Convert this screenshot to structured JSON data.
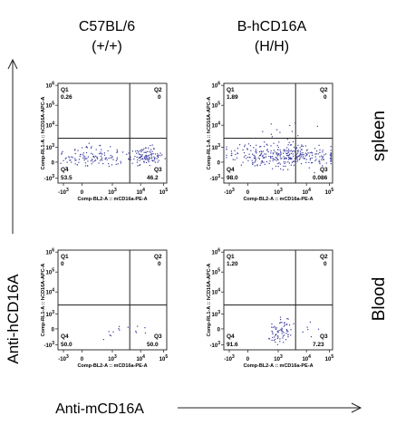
{
  "columns": [
    {
      "line1": "C57BL/6",
      "line2": "(+/+)"
    },
    {
      "line1": "B-hCD16A",
      "line2": "(H/H)"
    }
  ],
  "rows": [
    "spleen",
    "Blood"
  ],
  "axis_titles": {
    "y": "Anti-hCD16A",
    "x": "Anti-mCD16A"
  },
  "plot_labels": {
    "x": "Comp-BL2-A :: mCD16a-PE-A",
    "y": "Comp-RL1-A :: hCD16A-APC-A"
  },
  "colors": {
    "dots": "#3a3aa0",
    "text": "#111111"
  },
  "chart_data": [
    {
      "type": "scatter",
      "panel": "C57BL/6 (+/+) spleen",
      "xlabel": "Comp-BL2-A :: mCD16a-PE-A",
      "ylabel": "Comp-RL1-A :: hCD16A-APC-A",
      "quadrants": {
        "Q1": "0.26",
        "Q2": "0",
        "Q3": "46.2",
        "Q4": "53.5"
      }
    },
    {
      "type": "scatter",
      "panel": "B-hCD16A (H/H) spleen",
      "xlabel": "Comp-BL2-A :: mCD16a-PE-A",
      "ylabel": "Comp-RL1-A :: hCD16A-APC-A",
      "quadrants": {
        "Q1": "1.89",
        "Q2": "0",
        "Q3": "0.086",
        "Q4": "98.0"
      }
    },
    {
      "type": "scatter",
      "panel": "C57BL/6 (+/+) Blood",
      "xlabel": "Comp-BL2-A :: mCD16a-PE-A",
      "ylabel": "Comp-RL1-A :: hCD16A-APC-A",
      "quadrants": {
        "Q1": "0",
        "Q2": "0",
        "Q3": "50.0",
        "Q4": "50.0"
      }
    },
    {
      "type": "scatter",
      "panel": "B-hCD16A (H/H) Blood",
      "xlabel": "Comp-BL2-A :: mCD16a-PE-A",
      "ylabel": "Comp-RL1-A :: hCD16A-APC-A",
      "quadrants": {
        "Q1": "1.20",
        "Q2": "0",
        "Q3": "7.23",
        "Q4": "91.6"
      }
    }
  ]
}
